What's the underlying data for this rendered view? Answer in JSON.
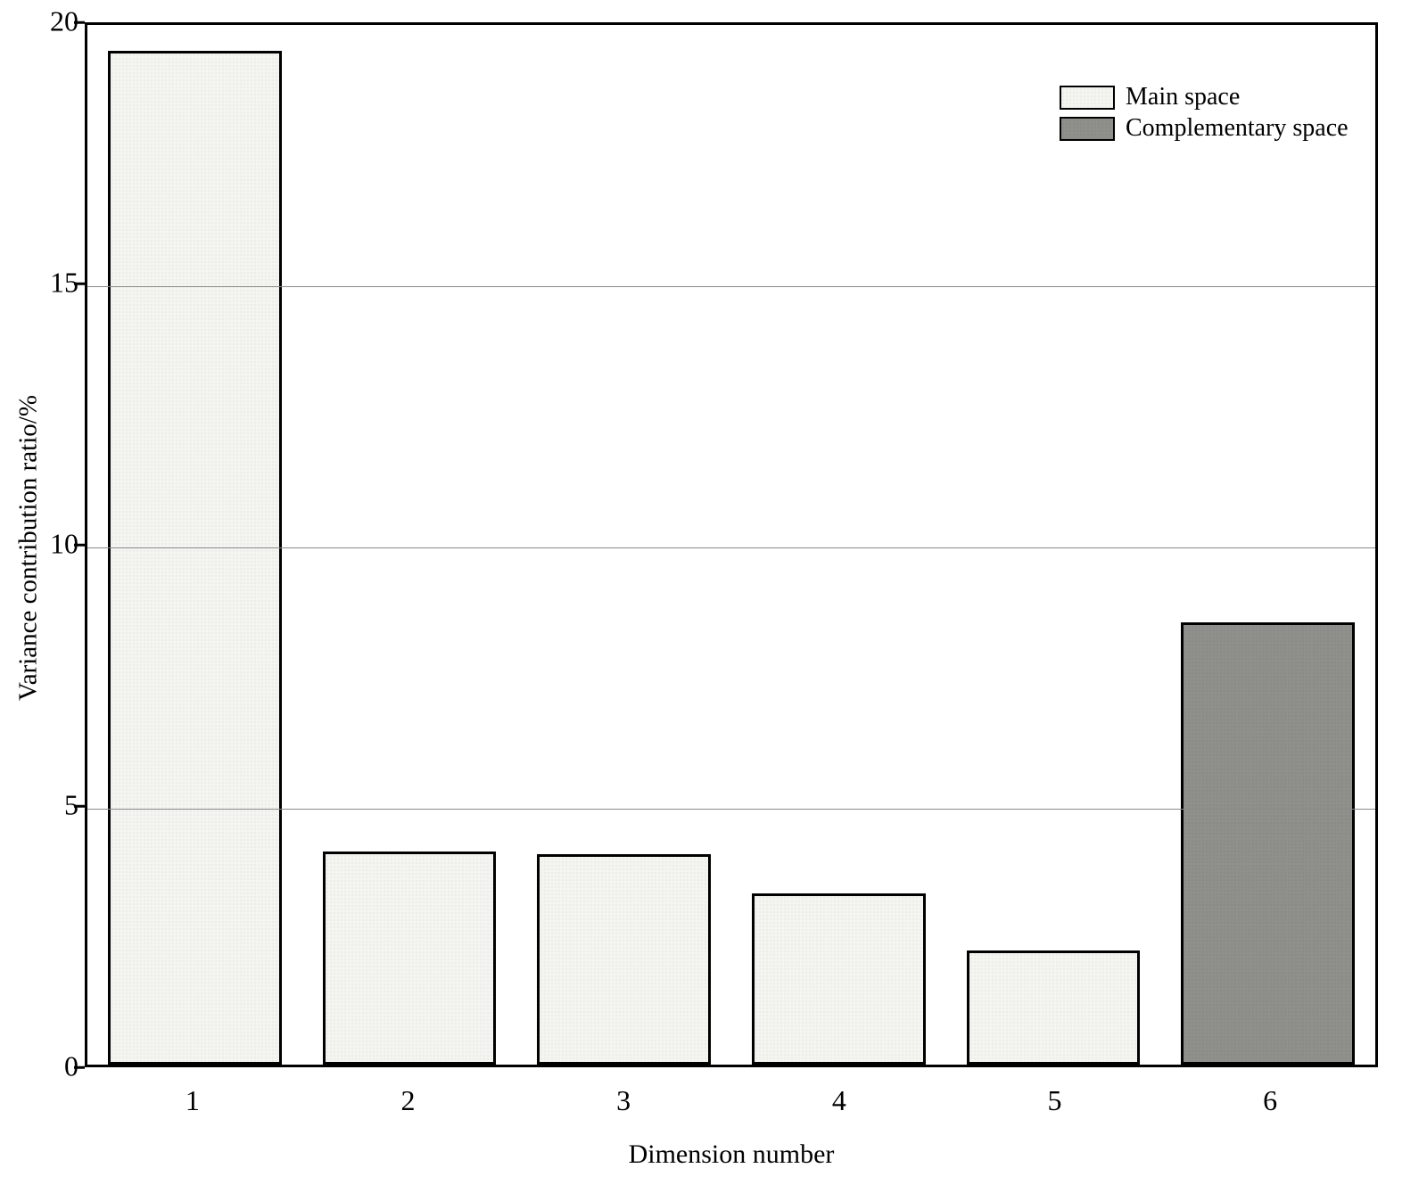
{
  "chart_data": {
    "type": "bar",
    "title": "",
    "xlabel": "Dimension number",
    "ylabel": "Variance contribution ratio/%",
    "ylim": [
      0,
      20
    ],
    "yticks": [
      0,
      5,
      10,
      15,
      20
    ],
    "gridlines_y": [
      5,
      10,
      15
    ],
    "grid": "horizontal",
    "legend_position": "top-right-inside",
    "categories": [
      "1",
      "2",
      "3",
      "4",
      "5",
      "6"
    ],
    "bars": [
      {
        "category": "1",
        "value": 19.5,
        "series": "Main space",
        "group": "main"
      },
      {
        "category": "2",
        "value": 4.1,
        "series": "Main space",
        "group": "main"
      },
      {
        "category": "3",
        "value": 4.05,
        "series": "Main space",
        "group": "main"
      },
      {
        "category": "4",
        "value": 3.3,
        "series": "Main space",
        "group": "main"
      },
      {
        "category": "5",
        "value": 2.2,
        "series": "Main space",
        "group": "main"
      },
      {
        "category": "6",
        "value": 8.5,
        "series": "Complementary space",
        "group": "complementary"
      }
    ],
    "legend": [
      {
        "label": "Main space",
        "group": "main",
        "fill": "#f4f4f1",
        "border": "#000000"
      },
      {
        "label": "Complementary space",
        "group": "complementary",
        "fill": "#8f8f8c",
        "border": "#000000"
      }
    ],
    "colors": {
      "main_fill": "#f4f4f1",
      "complementary_fill": "#8f8f8c",
      "bar_border": "#000000",
      "gridline": "#8a8a8a",
      "frame": "#000000",
      "background": "#ffffff"
    }
  }
}
